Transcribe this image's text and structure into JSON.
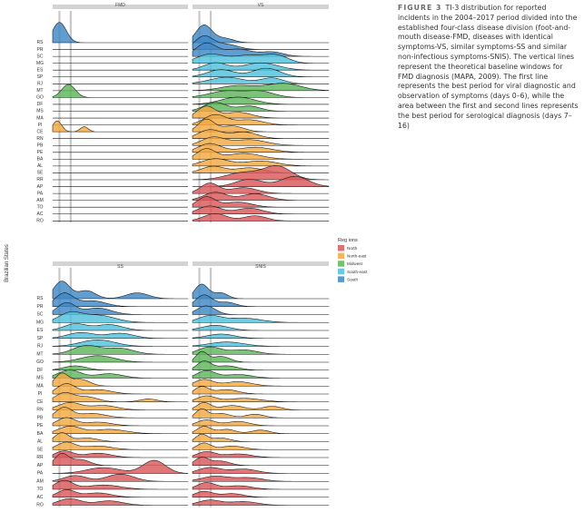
{
  "caption": {
    "label": "FIGURE 3",
    "text": "TI-3 distribution for reported incidents in the 2004–2017 period divided into the established four-class disease division (foot-and-mouth disease-FMD, diseases with identical symptoms-VS, similar symptoms-SS and similar non-infectious symptoms-SNIS). The vertical lines represent the theoretical baseline windows for FMD diagnosis (MAPA, 2009). The first line represents the best period for viral diagnostic and observation of symptoms (days 0–6), while the area between the first and second lines represents the best period for serological diagnosis (days 7–16)"
  },
  "chart_data": {
    "type": "ridgeline",
    "y_axis_title": "Brazilian States",
    "states": [
      "RS",
      "PR",
      "SC",
      "MG",
      "ES",
      "SP",
      "RJ",
      "MT",
      "GO",
      "DF",
      "MS",
      "MA",
      "PI",
      "CE",
      "RN",
      "PB",
      "PE",
      "BA",
      "AL",
      "SE",
      "RR",
      "AP",
      "PA",
      "AM",
      "TO",
      "AC",
      "RO"
    ],
    "state_region": {
      "RS": "South",
      "PR": "South",
      "SC": "South",
      "MG": "South-east",
      "ES": "South-east",
      "SP": "South-east",
      "RJ": "South-east",
      "MT": "Midwest",
      "GO": "Midwest",
      "DF": "Midwest",
      "MS": "Midwest",
      "MA": "North-east",
      "PI": "North-east",
      "CE": "North-east",
      "RN": "North-east",
      "PB": "North-east",
      "PE": "North-east",
      "BA": "North-east",
      "AL": "North-east",
      "SE": "North-east",
      "RR": "North",
      "AP": "North",
      "PA": "North",
      "AM": "North",
      "TO": "North",
      "AC": "North",
      "RO": "North"
    },
    "x_range_days": [
      0,
      120
    ],
    "reference_lines_days": [
      6,
      16
    ],
    "grid": false,
    "legend": {
      "title": "Reg ions",
      "placement": "right",
      "entries": [
        {
          "name": "North",
          "color": "#d9585a"
        },
        {
          "name": "North-east",
          "color": "#f3a841"
        },
        {
          "name": "Midwest",
          "color": "#5db65a"
        },
        {
          "name": "South-east",
          "color": "#4fc1dc"
        },
        {
          "name": "South",
          "color": "#3f87c6"
        }
      ]
    },
    "panels": [
      {
        "title": "FMD",
        "densities": {
          "RS": [
            [
              6,
              6,
              1.4
            ]
          ],
          "GO": [
            [
              14,
              6,
              0.9
            ]
          ],
          "CE": [
            [
              4,
              4,
              0.75
            ],
            [
              28,
              3.5,
              0.35
            ]
          ]
        }
      },
      {
        "title": "VS",
        "densities": {
          "RS": [
            [
              10,
              7,
              1.2
            ],
            [
              28,
              8,
              0.3
            ]
          ],
          "PR": [
            [
              10,
              8,
              0.9
            ],
            [
              30,
              10,
              0.35
            ]
          ],
          "SC": [
            [
              12,
              9,
              0.9
            ],
            [
              40,
              12,
              0.5
            ],
            [
              70,
              10,
              0.3
            ]
          ],
          "MG": [
            [
              15,
              12,
              0.6
            ],
            [
              50,
              15,
              0.55
            ],
            [
              75,
              10,
              0.45
            ]
          ],
          "ES": [
            [
              20,
              10,
              0.5
            ],
            [
              60,
              15,
              0.5
            ]
          ],
          "SP": [
            [
              25,
              12,
              0.5
            ],
            [
              65,
              12,
              0.6
            ]
          ],
          "RJ": [
            [
              30,
              15,
              0.45
            ],
            [
              70,
              10,
              0.4
            ]
          ],
          "MT": [
            [
              40,
              15,
              0.35
            ],
            [
              80,
              15,
              0.5
            ]
          ],
          "GO": [
            [
              30,
              15,
              0.45
            ],
            [
              60,
              12,
              0.4
            ]
          ],
          "DF": [
            [
              40,
              15,
              0.5
            ]
          ],
          "MS": [
            [
              20,
              10,
              0.6
            ],
            [
              50,
              10,
              0.35
            ]
          ],
          "MA": [
            [
              12,
              8,
              0.8
            ],
            [
              40,
              12,
              0.4
            ]
          ],
          "PI": [
            [
              20,
              10,
              0.7
            ],
            [
              50,
              12,
              0.35
            ]
          ],
          "CE": [
            [
              12,
              7,
              0.85
            ],
            [
              35,
              10,
              0.4
            ]
          ],
          "RN": [
            [
              15,
              10,
              0.6
            ],
            [
              45,
              12,
              0.45
            ]
          ],
          "PB": [
            [
              18,
              10,
              0.55
            ],
            [
              50,
              15,
              0.4
            ]
          ],
          "PE": [
            [
              15,
              10,
              0.6
            ],
            [
              55,
              15,
              0.35
            ]
          ],
          "BA": [
            [
              12,
              8,
              0.7
            ],
            [
              45,
              15,
              0.4
            ]
          ],
          "AL": [
            [
              20,
              12,
              0.5
            ],
            [
              60,
              15,
              0.35
            ]
          ],
          "SE": [
            [
              18,
              10,
              0.45
            ],
            [
              50,
              12,
              0.35
            ]
          ],
          "RR": [
            [
              45,
              15,
              0.5
            ],
            [
              75,
              12,
              0.9
            ]
          ],
          "AP": [
            [
              50,
              12,
              0.5
            ],
            [
              90,
              12,
              0.7
            ]
          ],
          "PA": [
            [
              15,
              8,
              0.7
            ],
            [
              45,
              12,
              0.4
            ]
          ],
          "AM": [
            [
              20,
              10,
              0.55
            ],
            [
              55,
              12,
              0.45
            ]
          ],
          "TO": [
            [
              12,
              8,
              0.7
            ],
            [
              40,
              12,
              0.35
            ]
          ],
          "AC": [
            [
              15,
              10,
              0.55
            ],
            [
              50,
              12,
              0.4
            ]
          ],
          "RO": [
            [
              20,
              10,
              0.5
            ],
            [
              55,
              10,
              0.35
            ]
          ]
        }
      },
      {
        "title": "SS",
        "densities": {
          "RS": [
            [
              8,
              7,
              1.2
            ],
            [
              30,
              8,
              0.55
            ],
            [
              75,
              10,
              0.4
            ]
          ],
          "PR": [
            [
              10,
              8,
              0.9
            ],
            [
              35,
              12,
              0.4
            ]
          ],
          "SC": [
            [
              12,
              8,
              0.8
            ],
            [
              40,
              12,
              0.45
            ]
          ],
          "MG": [
            [
              15,
              10,
              0.6
            ],
            [
              40,
              15,
              0.5
            ]
          ],
          "ES": [
            [
              20,
              10,
              0.45
            ],
            [
              50,
              12,
              0.4
            ]
          ],
          "SP": [
            [
              25,
              12,
              0.4
            ],
            [
              60,
              12,
              0.35
            ]
          ],
          "RJ": [
            [
              40,
              15,
              0.45
            ]
          ],
          "MT": [
            [
              30,
              12,
              0.6
            ],
            [
              60,
              12,
              0.4
            ]
          ],
          "GO": [
            [
              40,
              15,
              0.45
            ]
          ],
          "DF": [
            [
              20,
              10,
              0.3
            ]
          ],
          "MS": [
            [
              15,
              10,
              0.55
            ],
            [
              50,
              12,
              0.3
            ]
          ],
          "MA": [
            [
              8,
              6,
              0.85
            ],
            [
              25,
              8,
              0.45
            ]
          ],
          "PI": [
            [
              12,
              8,
              0.7
            ],
            [
              40,
              12,
              0.3
            ]
          ],
          "CE": [
            [
              10,
              8,
              0.6
            ],
            [
              30,
              10,
              0.35
            ],
            [
              85,
              8,
              0.2
            ]
          ],
          "RN": [
            [
              15,
              10,
              0.5
            ],
            [
              45,
              12,
              0.3
            ]
          ],
          "PB": [
            [
              10,
              7,
              0.7
            ],
            [
              35,
              12,
              0.3
            ]
          ],
          "PE": [
            [
              12,
              8,
              0.55
            ],
            [
              40,
              12,
              0.25
            ]
          ],
          "BA": [
            [
              15,
              10,
              0.5
            ],
            [
              50,
              15,
              0.3
            ]
          ],
          "AL": [
            [
              8,
              6,
              0.6
            ],
            [
              30,
              10,
              0.25
            ]
          ],
          "SE": [
            [
              12,
              8,
              0.5
            ],
            [
              40,
              12,
              0.25
            ]
          ],
          "RR": [
            [
              10,
              8,
              0.45
            ],
            [
              40,
              12,
              0.3
            ]
          ],
          "AP": [
            [
              8,
              6,
              0.8
            ],
            [
              25,
              8,
              0.4
            ]
          ],
          "PA": [
            [
              45,
              15,
              0.4
            ],
            [
              90,
              10,
              0.9
            ]
          ],
          "AM": [
            [
              20,
              10,
              0.4
            ],
            [
              60,
              12,
              0.5
            ]
          ],
          "TO": [
            [
              10,
              8,
              0.6
            ],
            [
              45,
              15,
              0.3
            ]
          ],
          "AC": [
            [
              12,
              8,
              0.5
            ],
            [
              40,
              12,
              0.3
            ]
          ],
          "RO": [
            [
              15,
              10,
              0.45
            ],
            [
              50,
              12,
              0.3
            ]
          ]
        }
      },
      {
        "title": "SNIS",
        "densities": {
          "RS": [
            [
              8,
              6,
              1.0
            ],
            [
              25,
              6,
              0.4
            ]
          ],
          "PR": [
            [
              10,
              7,
              0.8
            ],
            [
              30,
              8,
              0.3
            ]
          ],
          "SC": [
            [
              12,
              8,
              0.6
            ]
          ],
          "MG": [
            [
              15,
              10,
              0.45
            ],
            [
              45,
              15,
              0.3
            ]
          ],
          "ES": [
            [
              20,
              12,
              0.35
            ]
          ],
          "SP": [
            [
              25,
              12,
              0.3
            ]
          ],
          "RJ": [
            [
              30,
              15,
              0.3
            ]
          ],
          "MT": [
            [
              15,
              10,
              0.5
            ],
            [
              45,
              12,
              0.3
            ]
          ],
          "GO": [
            [
              8,
              5,
              0.7
            ],
            [
              25,
              8,
              0.4
            ]
          ],
          "DF": [
            [
              10,
              6,
              0.6
            ],
            [
              30,
              10,
              0.3
            ]
          ],
          "MS": [
            [
              12,
              8,
              0.5
            ],
            [
              40,
              12,
              0.25
            ]
          ],
          "MA": [
            [
              10,
              8,
              0.45
            ],
            [
              40,
              12,
              0.3
            ]
          ],
          "PI": [
            [
              8,
              6,
              0.5
            ],
            [
              30,
              10,
              0.3
            ]
          ],
          "CE": [
            [
              12,
              8,
              0.4
            ],
            [
              45,
              15,
              0.25
            ]
          ],
          "RN": [
            [
              10,
              6,
              0.5
            ],
            [
              35,
              10,
              0.3
            ],
            [
              70,
              8,
              0.25
            ]
          ],
          "PB": [
            [
              8,
              5,
              0.6
            ],
            [
              25,
              8,
              0.3
            ],
            [
              55,
              8,
              0.25
            ]
          ],
          "PE": [
            [
              12,
              8,
              0.4
            ],
            [
              40,
              10,
              0.3
            ]
          ],
          "BA": [
            [
              10,
              6,
              0.5
            ],
            [
              30,
              8,
              0.3
            ],
            [
              60,
              8,
              0.25
            ]
          ],
          "AL": [
            [
              8,
              5,
              0.5
            ],
            [
              25,
              8,
              0.25
            ]
          ],
          "SE": [
            [
              10,
              6,
              0.45
            ],
            [
              35,
              10,
              0.25
            ]
          ],
          "RR": [
            [
              12,
              8,
              0.4
            ],
            [
              40,
              12,
              0.25
            ]
          ],
          "AP": [
            [
              8,
              6,
              0.55
            ],
            [
              25,
              8,
              0.3
            ]
          ],
          "PA": [
            [
              15,
              10,
              0.4
            ],
            [
              45,
              12,
              0.3
            ]
          ],
          "AM": [
            [
              20,
              12,
              0.35
            ],
            [
              50,
              12,
              0.25
            ]
          ],
          "TO": [
            [
              12,
              8,
              0.45
            ],
            [
              40,
              12,
              0.25
            ]
          ],
          "AC": [
            [
              10,
              8,
              0.4
            ],
            [
              35,
              10,
              0.25
            ]
          ],
          "RO": [
            [
              15,
              10,
              0.35
            ],
            [
              45,
              12,
              0.25
            ]
          ]
        }
      }
    ]
  }
}
